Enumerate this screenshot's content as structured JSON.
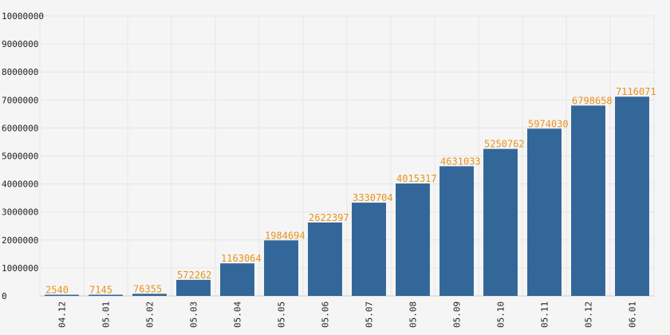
{
  "chart_data": {
    "type": "bar",
    "categories": [
      "04.12",
      "05.01",
      "05.02",
      "05.03",
      "05.04",
      "05.05",
      "05.06",
      "05.07",
      "05.08",
      "05.09",
      "05.10",
      "05.11",
      "05.12",
      "06.01"
    ],
    "values": [
      2540,
      7145,
      76355,
      572262,
      1163064,
      1984694,
      2622397,
      3330704,
      4015317,
      4631033,
      5250762,
      5974030,
      6798658,
      7116071
    ],
    "title": "",
    "xlabel": "",
    "ylabel": "",
    "ylim": [
      0,
      10000000
    ],
    "yticks": [
      "0",
      "1000000",
      "2000000",
      "3000000",
      "4000000",
      "5000000",
      "6000000",
      "7000000",
      "8000000",
      "9000000",
      "10000000"
    ],
    "grid": true,
    "legend": "none",
    "colors": {
      "bar": "#336699",
      "data_label": "#e8921c",
      "grid": "#e6e6e6",
      "background": "#f5f5f5",
      "axis_text": "#222222"
    }
  }
}
